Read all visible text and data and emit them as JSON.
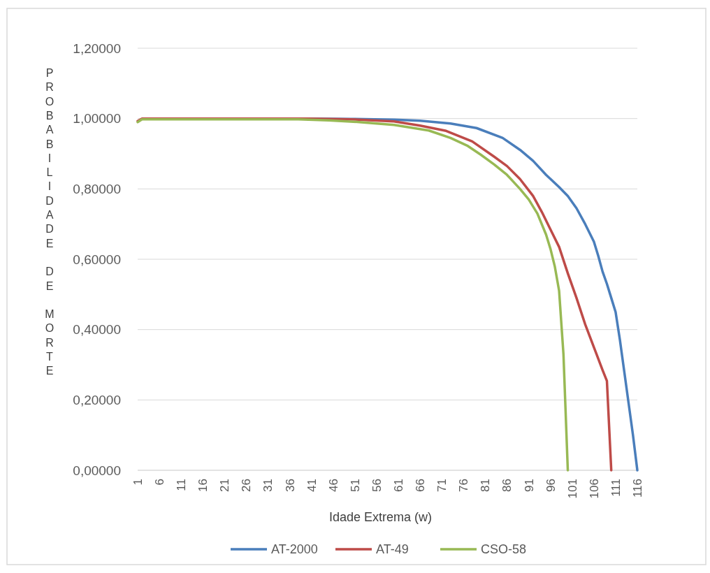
{
  "chart_data": {
    "type": "line",
    "xlabel": "Idade Extrema (w)",
    "ylabel": "PROBABILIDADE DE MORTE",
    "xlim": [
      1,
      116
    ],
    "xticks": [
      1,
      6,
      11,
      16,
      21,
      26,
      31,
      36,
      41,
      46,
      51,
      56,
      61,
      66,
      71,
      76,
      81,
      86,
      91,
      96,
      101,
      106,
      111,
      116
    ],
    "ylim": [
      0,
      1.2
    ],
    "yticks": [
      {
        "value": 0,
        "label": "0,00000"
      },
      {
        "value": 0.2,
        "label": "0,20000"
      },
      {
        "value": 0.4,
        "label": "0,40000"
      },
      {
        "value": 0.6,
        "label": "0,60000"
      },
      {
        "value": 0.8,
        "label": "0,80000"
      },
      {
        "value": 1,
        "label": "1,00000"
      },
      {
        "value": 1.2,
        "label": "1,20000"
      }
    ],
    "grid": "y",
    "legend": "bottom",
    "line_style": "solid",
    "series": [
      {
        "name": "AT-2000",
        "color": "#4a7ebb",
        "x": [
          40,
          50,
          60,
          66,
          73,
          79,
          85,
          89,
          92,
          95,
          98,
          100,
          102,
          104,
          106,
          107,
          108,
          109,
          110,
          111,
          112,
          113,
          114,
          115,
          116
        ],
        "values": [
          1,
          0.999,
          0.997,
          0.994,
          0.986,
          0.973,
          0.945,
          0.911,
          0.88,
          0.84,
          0.805,
          0.78,
          0.745,
          0.7,
          0.65,
          0.61,
          0.565,
          0.53,
          0.49,
          0.45,
          0.37,
          0.28,
          0.19,
          0.1,
          0
        ]
      },
      {
        "name": "AT-49",
        "color": "#be4b48",
        "x": [
          1,
          2,
          10,
          40,
          50,
          60,
          66,
          72,
          78,
          83,
          86,
          89,
          92,
          94,
          96,
          98,
          100,
          102,
          104,
          106,
          108,
          109,
          110
        ],
        "values": [
          0.993,
          1,
          1,
          1,
          0.998,
          0.992,
          0.98,
          0.965,
          0.935,
          0.892,
          0.865,
          0.828,
          0.78,
          0.735,
          0.685,
          0.635,
          0.56,
          0.49,
          0.415,
          0.35,
          0.285,
          0.254,
          0
        ]
      },
      {
        "name": "CSO-58",
        "color": "#98b954",
        "x": [
          1,
          2,
          10,
          38,
          45,
          52,
          60,
          68,
          73,
          77,
          80,
          83,
          86,
          89,
          91,
          93,
          95,
          96,
          97,
          98,
          99,
          100
        ],
        "values": [
          0.99,
          0.998,
          0.998,
          0.998,
          0.995,
          0.99,
          0.982,
          0.966,
          0.945,
          0.922,
          0.897,
          0.87,
          0.84,
          0.8,
          0.77,
          0.73,
          0.67,
          0.63,
          0.58,
          0.51,
          0.33,
          0
        ]
      }
    ]
  }
}
